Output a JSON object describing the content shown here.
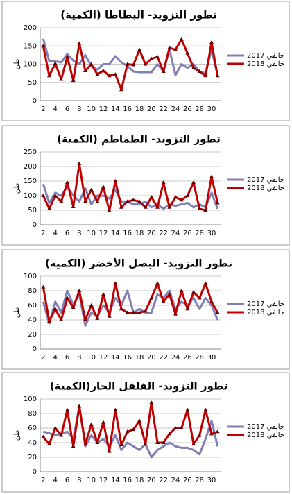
{
  "chart_data": [
    {
      "type": "line",
      "title": "تطور التزويد- البطاطا (الكمية)",
      "y_label": "طن",
      "categories": [
        2,
        null,
        4,
        null,
        6,
        null,
        8,
        null,
        10,
        null,
        12,
        null,
        14,
        null,
        16,
        null,
        18,
        null,
        20,
        null,
        22,
        null,
        24,
        null,
        26,
        null,
        28,
        null,
        30,
        null
      ],
      "series": [
        {
          "name": "جانفي 2017",
          "color": "#7f7fb5",
          "values": [
            170,
            108,
            108,
            105,
            128,
            110,
            100,
            125,
            95,
            85,
            100,
            100,
            122,
            105,
            95,
            80,
            78,
            78,
            78,
            100,
            80,
            140,
            70,
            100,
            90,
            100,
            80,
            75,
            140,
            70
          ]
        },
        {
          "name": "جانفي 2018",
          "color": "#c00000",
          "values": [
            150,
            68,
            102,
            58,
            120,
            55,
            157,
            82,
            100,
            72,
            82,
            68,
            72,
            30,
            100,
            98,
            140,
            100,
            115,
            120,
            80,
            145,
            140,
            168,
            130,
            90,
            80,
            68,
            160,
            68
          ]
        }
      ],
      "ylim": [
        0,
        200
      ],
      "yticks": [
        0,
        50,
        100,
        150,
        200
      ]
    },
    {
      "type": "line",
      "title": "تطور التزويد- الطماطم (الكمية)",
      "y_label": "طن",
      "categories": [
        2,
        null,
        4,
        null,
        6,
        null,
        8,
        null,
        10,
        null,
        12,
        null,
        14,
        null,
        16,
        null,
        18,
        null,
        20,
        null,
        22,
        null,
        24,
        null,
        26,
        null,
        28,
        null,
        30,
        null
      ],
      "series": [
        {
          "name": "جانفي 2017",
          "color": "#7f7fb5",
          "values": [
            140,
            75,
            110,
            100,
            130,
            100,
            80,
            125,
            70,
            100,
            100,
            90,
            120,
            80,
            80,
            70,
            70,
            80,
            60,
            70,
            55,
            70,
            65,
            70,
            75,
            60,
            70,
            60,
            110,
            55
          ]
        },
        {
          "name": "جانفي 2018",
          "color": "#c00000",
          "values": [
            100,
            55,
            100,
            80,
            145,
            62,
            210,
            80,
            120,
            80,
            130,
            48,
            150,
            60,
            80,
            85,
            80,
            60,
            95,
            60,
            145,
            60,
            95,
            85,
            100,
            145,
            55,
            50,
            165,
            75
          ]
        }
      ],
      "ylim": [
        0,
        250
      ],
      "yticks": [
        0,
        50,
        100,
        150,
        200,
        250
      ]
    },
    {
      "type": "line",
      "title": "تطور التزويد- البصل الأخضر (الكمية)",
      "y_label": "طن",
      "categories": [
        2,
        null,
        4,
        null,
        6,
        null,
        8,
        null,
        10,
        null,
        12,
        null,
        14,
        null,
        16,
        null,
        18,
        null,
        20,
        null,
        22,
        null,
        24,
        null,
        26,
        null,
        28,
        null,
        30,
        null
      ],
      "series": [
        {
          "name": "جانفي 2017",
          "color": "#7f7fb5",
          "values": [
            65,
            35,
            65,
            50,
            80,
            60,
            75,
            32,
            50,
            45,
            60,
            50,
            70,
            60,
            80,
            50,
            55,
            50,
            50,
            75,
            70,
            80,
            55,
            65,
            60,
            70,
            55,
            70,
            60,
            40
          ]
        },
        {
          "name": "جانفي 2018",
          "color": "#c00000",
          "values": [
            85,
            38,
            55,
            40,
            70,
            57,
            80,
            40,
            60,
            42,
            75,
            45,
            90,
            55,
            50,
            50,
            50,
            52,
            70,
            90,
            65,
            75,
            48,
            80,
            55,
            78,
            70,
            90,
            65,
            50
          ]
        }
      ],
      "ylim": [
        0,
        100
      ],
      "yticks": [
        0,
        20,
        40,
        60,
        80,
        100
      ]
    },
    {
      "type": "line",
      "title": "تطور التزويد- الفلفل الحار(الكمية)",
      "y_label": "طن",
      "categories": [
        2,
        null,
        4,
        null,
        6,
        null,
        8,
        null,
        10,
        null,
        12,
        null,
        14,
        null,
        16,
        null,
        18,
        null,
        20,
        null,
        22,
        null,
        24,
        null,
        26,
        null,
        28,
        null,
        30,
        null
      ],
      "series": [
        {
          "name": "جانفي 2017",
          "color": "#7f7fb5",
          "values": [
            55,
            53,
            50,
            52,
            55,
            45,
            90,
            35,
            50,
            40,
            45,
            35,
            50,
            30,
            40,
            35,
            30,
            38,
            20,
            30,
            35,
            40,
            35,
            33,
            33,
            30,
            24,
            45,
            70,
            35
          ]
        },
        {
          "name": "جانفي 2018",
          "color": "#c00000",
          "values": [
            48,
            38,
            60,
            50,
            85,
            35,
            90,
            38,
            65,
            40,
            68,
            28,
            85,
            37,
            55,
            58,
            70,
            38,
            95,
            40,
            40,
            52,
            60,
            60,
            85,
            38,
            50,
            85,
            52,
            55
          ]
        }
      ],
      "ylim": [
        0,
        100
      ],
      "yticks": [
        0,
        20,
        40,
        60,
        80,
        100
      ]
    }
  ]
}
